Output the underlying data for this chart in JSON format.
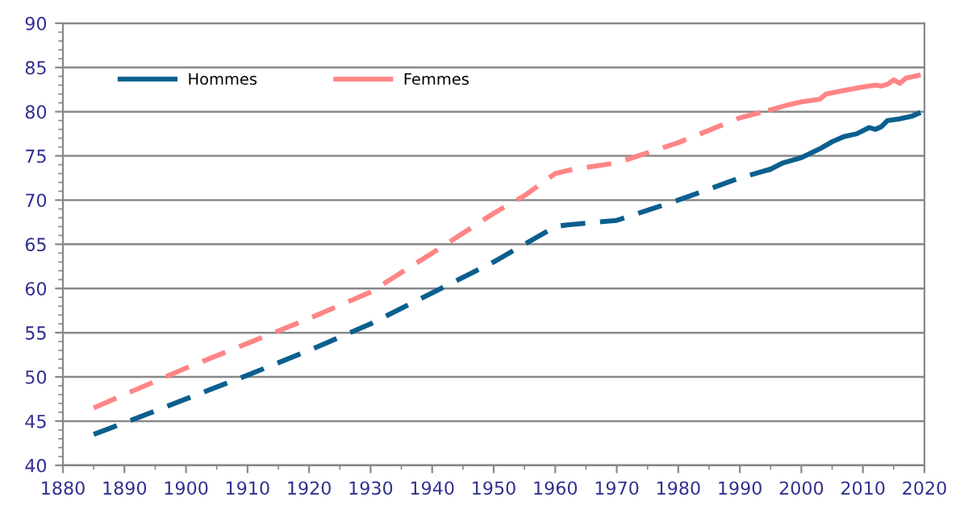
{
  "chart_data": {
    "type": "line",
    "xlim": [
      1880,
      2020
    ],
    "xticks": [
      1880,
      1890,
      1900,
      1910,
      1920,
      1930,
      1940,
      1950,
      1960,
      1970,
      1980,
      1990,
      2000,
      2010,
      2020
    ],
    "ylim": [
      40,
      90
    ],
    "yticks": [
      40,
      45,
      50,
      55,
      60,
      65,
      70,
      75,
      80,
      85,
      90
    ],
    "grid": "y",
    "legend": "top left",
    "series": [
      {
        "name": "Hommes",
        "color": "#0b5f8e",
        "line_style": "solid",
        "x": [
          1995,
          1997,
          2000,
          2003,
          2005,
          2007,
          2009,
          2011,
          2012,
          2013,
          2014,
          2016,
          2018,
          2019
        ],
        "values": [
          73.5,
          74.2,
          74.8,
          75.8,
          76.6,
          77.2,
          77.5,
          78.2,
          78,
          78.3,
          79,
          79.2,
          79.5,
          79.8
        ]
      },
      {
        "name": "Femmes",
        "color": "#ff8585",
        "line_style": "solid",
        "x": [
          1995,
          1998,
          2000,
          2003,
          2004,
          2007,
          2010,
          2012,
          2013,
          2014,
          2015,
          2016,
          2017,
          2019
        ],
        "values": [
          80.2,
          80.8,
          81.1,
          81.4,
          82,
          82.4,
          82.8,
          83,
          82.9,
          83.1,
          83.6,
          83.2,
          83.8,
          84.1
        ]
      },
      {
        "color": "#0b5f8e",
        "line_style": "dashed",
        "x": [
          1885,
          1890,
          1900,
          1910,
          1920,
          1930,
          1940,
          1950,
          1955,
          1960,
          1962,
          1970,
          1980,
          1990,
          1995
        ],
        "values": [
          43.5,
          44.8,
          47.5,
          50.2,
          53,
          56,
          59.5,
          63,
          65,
          67,
          67.2,
          67.7,
          70,
          72.5,
          73.5
        ]
      },
      {
        "color": "#ff8585",
        "line_style": "dashed",
        "x": [
          1885,
          1890,
          1900,
          1910,
          1920,
          1930,
          1940,
          1950,
          1955,
          1960,
          1963,
          1970,
          1980,
          1990,
          1995
        ],
        "values": [
          46.5,
          48,
          51,
          53.8,
          56.6,
          59.6,
          64,
          68.5,
          70.5,
          73,
          73.5,
          74.2,
          76.5,
          79.3,
          80.2
        ]
      }
    ]
  }
}
